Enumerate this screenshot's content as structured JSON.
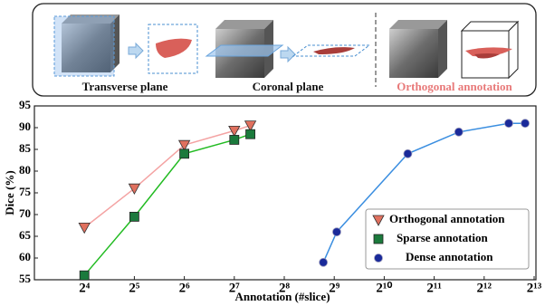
{
  "diagram": {
    "labels": [
      "Transverse plane",
      "Coronal plane",
      "Orthogonal annotation"
    ]
  },
  "chart_data": {
    "type": "line",
    "xscale": "log",
    "xlabel": "Annotation (#slice)",
    "ylabel": "Dice (%)",
    "xlim": [
      8,
      8400
    ],
    "ylim": [
      55,
      95
    ],
    "xticks": [
      {
        "value": 16,
        "label": "2⁴"
      },
      {
        "value": 32,
        "label": "2⁵"
      },
      {
        "value": 64,
        "label": "2⁶"
      },
      {
        "value": 128,
        "label": "2⁷"
      },
      {
        "value": 256,
        "label": "2⁸"
      },
      {
        "value": 512,
        "label": "2⁹"
      },
      {
        "value": 1024,
        "label": "2¹⁰"
      },
      {
        "value": 2048,
        "label": "2¹¹"
      },
      {
        "value": 4096,
        "label": "2¹²"
      },
      {
        "value": 8192,
        "label": "2¹³"
      }
    ],
    "yticks": [
      55,
      60,
      65,
      70,
      75,
      80,
      85,
      90,
      95
    ],
    "legend": "lower right",
    "series": [
      {
        "name": "Orthogonal annotation",
        "color": "#e0705e",
        "line_color": "#f4a3a3",
        "marker": "triangle",
        "x": [
          16,
          32,
          64,
          128,
          160
        ],
        "values": [
          67,
          76,
          86,
          89.3,
          90.5
        ]
      },
      {
        "name": "Sparse annotation",
        "color": "#1b7a3c",
        "line_color": "#22bb22",
        "marker": "square",
        "x": [
          16,
          32,
          64,
          128,
          160
        ],
        "values": [
          56,
          69.5,
          84,
          87.2,
          88.5
        ]
      },
      {
        "name": "Dense annotation",
        "color": "#1a2a9a",
        "line_color": "#3a8ee0",
        "marker": "circle",
        "x": [
          440,
          530,
          1420,
          2880,
          5760,
          7230
        ],
        "values": [
          59,
          66,
          84,
          89,
          91,
          91
        ]
      }
    ]
  }
}
